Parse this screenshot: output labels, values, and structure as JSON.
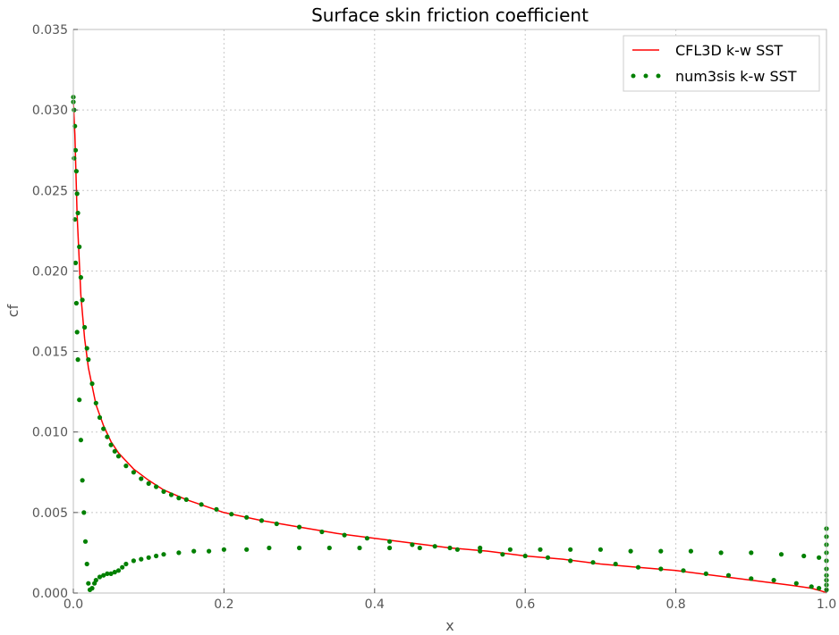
{
  "chart_data": {
    "type": "line",
    "title": "Surface skin friction coefficient",
    "xlabel": "x",
    "ylabel": "cf",
    "xlim": [
      0.0,
      1.0
    ],
    "ylim": [
      0.0,
      0.035
    ],
    "x_ticks": [
      "0.0",
      "0.2",
      "0.4",
      "0.6",
      "0.8",
      "1.0"
    ],
    "y_ticks": [
      "0.000",
      "0.005",
      "0.010",
      "0.015",
      "0.020",
      "0.025",
      "0.030",
      "0.035"
    ],
    "grid": true,
    "legend_position": "top-right",
    "series": [
      {
        "name": "CFL3D k-w SST",
        "style": "line",
        "color": "#ff0000",
        "x": [
          0.0,
          0.002,
          0.005,
          0.01,
          0.015,
          0.02,
          0.03,
          0.04,
          0.05,
          0.06,
          0.08,
          0.1,
          0.12,
          0.15,
          0.2,
          0.25,
          0.3,
          0.35,
          0.4,
          0.45,
          0.5,
          0.55,
          0.6,
          0.65,
          0.7,
          0.75,
          0.8,
          0.85,
          0.9,
          0.95,
          0.98,
          0.995,
          1.0
        ],
        "y": [
          0.0305,
          0.0285,
          0.0235,
          0.0185,
          0.0158,
          0.014,
          0.0117,
          0.0104,
          0.0094,
          0.0087,
          0.0077,
          0.007,
          0.0064,
          0.0058,
          0.005,
          0.0045,
          0.0041,
          0.0037,
          0.0034,
          0.0031,
          0.0028,
          0.0026,
          0.0023,
          0.0021,
          0.0018,
          0.0016,
          0.0014,
          0.0011,
          0.0008,
          0.0005,
          0.0003,
          0.0001,
          0.0
        ]
      },
      {
        "name": "num3sis k-w SST",
        "style": "markers",
        "color": "#008000",
        "upper_surface": {
          "x": [
            0.0,
            0.001,
            0.002,
            0.003,
            0.004,
            0.005,
            0.006,
            0.008,
            0.01,
            0.012,
            0.015,
            0.018,
            0.02,
            0.025,
            0.03,
            0.035,
            0.04,
            0.045,
            0.05,
            0.055,
            0.06,
            0.07,
            0.08,
            0.09,
            0.1,
            0.11,
            0.12,
            0.13,
            0.14,
            0.15,
            0.17,
            0.19,
            0.21,
            0.23,
            0.25,
            0.27,
            0.3,
            0.33,
            0.36,
            0.39,
            0.42,
            0.45,
            0.48,
            0.51,
            0.54,
            0.57,
            0.6,
            0.63,
            0.66,
            0.69,
            0.72,
            0.75,
            0.78,
            0.81,
            0.84,
            0.87,
            0.9,
            0.93,
            0.96,
            0.98,
            0.99
          ],
          "y": [
            0.0308,
            0.03,
            0.029,
            0.0275,
            0.0262,
            0.0248,
            0.0236,
            0.0215,
            0.0196,
            0.0182,
            0.0165,
            0.0152,
            0.0145,
            0.013,
            0.0118,
            0.0109,
            0.0102,
            0.0097,
            0.0092,
            0.0088,
            0.0085,
            0.0079,
            0.0075,
            0.0071,
            0.0068,
            0.0066,
            0.0063,
            0.0061,
            0.0059,
            0.0058,
            0.0055,
            0.0052,
            0.0049,
            0.0047,
            0.0045,
            0.0043,
            0.0041,
            0.0038,
            0.0036,
            0.0034,
            0.0032,
            0.003,
            0.0029,
            0.0027,
            0.0026,
            0.0024,
            0.0023,
            0.0022,
            0.002,
            0.0019,
            0.0018,
            0.0016,
            0.0015,
            0.0014,
            0.0012,
            0.0011,
            0.0009,
            0.0008,
            0.0006,
            0.0004,
            0.0003
          ]
        },
        "lower_surface": {
          "x": [
            0.0,
            0.001,
            0.002,
            0.003,
            0.004,
            0.005,
            0.006,
            0.008,
            0.01,
            0.012,
            0.014,
            0.016,
            0.018,
            0.02,
            0.022,
            0.025,
            0.028,
            0.03,
            0.035,
            0.04,
            0.045,
            0.05,
            0.055,
            0.06,
            0.065,
            0.07,
            0.08,
            0.09,
            0.1,
            0.11,
            0.12,
            0.14,
            0.16,
            0.18,
            0.2,
            0.23,
            0.26,
            0.3,
            0.34,
            0.38,
            0.42,
            0.46,
            0.5,
            0.54,
            0.58,
            0.62,
            0.66,
            0.7,
            0.74,
            0.78,
            0.82,
            0.86,
            0.9,
            0.94,
            0.97,
            0.99
          ],
          "y": [
            0.0305,
            0.027,
            0.0232,
            0.0205,
            0.018,
            0.0162,
            0.0145,
            0.012,
            0.0095,
            0.007,
            0.005,
            0.0032,
            0.0018,
            0.0006,
            0.0002,
            0.0003,
            0.0006,
            0.0008,
            0.001,
            0.0011,
            0.0012,
            0.0012,
            0.0013,
            0.0014,
            0.0016,
            0.0018,
            0.002,
            0.0021,
            0.0022,
            0.0023,
            0.0024,
            0.0025,
            0.0026,
            0.0026,
            0.0027,
            0.0027,
            0.0028,
            0.0028,
            0.0028,
            0.0028,
            0.0028,
            0.0028,
            0.0028,
            0.0028,
            0.0027,
            0.0027,
            0.0027,
            0.0027,
            0.0026,
            0.0026,
            0.0026,
            0.0025,
            0.0025,
            0.0024,
            0.0023,
            0.0022
          ]
        },
        "trailing_edge": {
          "x": [
            1.0,
            1.0,
            1.0,
            1.0,
            1.0,
            1.0,
            1.0,
            1.0,
            1.0,
            1.0
          ],
          "y": [
            0.004,
            0.0035,
            0.003,
            0.0025,
            0.002,
            0.0015,
            0.0011,
            0.0008,
            0.0005,
            0.0002
          ]
        }
      }
    ]
  }
}
